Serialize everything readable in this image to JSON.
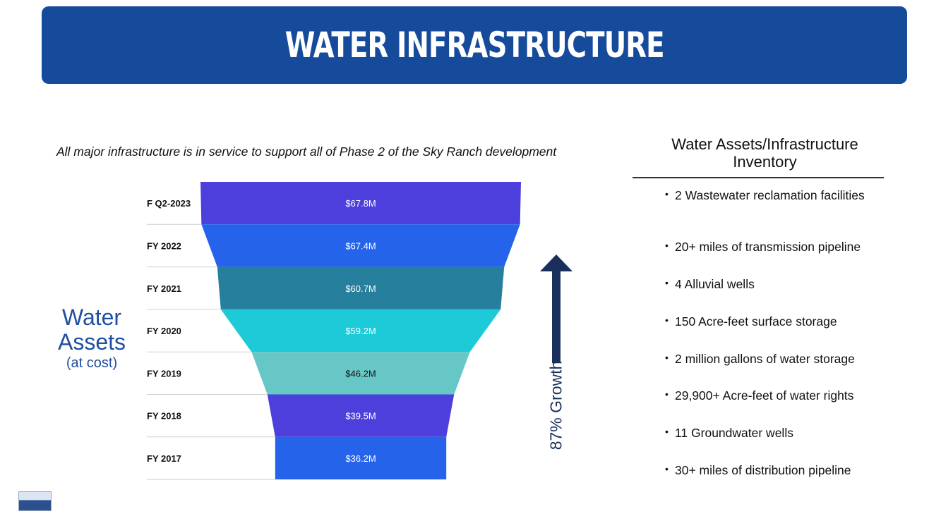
{
  "header": {
    "title": "WATER INFRASTRUCTURE"
  },
  "subtitle": "All major infrastructure is in service to support all of Phase 2 of the Sky Ranch development",
  "side_label": {
    "line1": "Water",
    "line2": "Assets",
    "line3": "(at cost)"
  },
  "growth_label": "87% Growth",
  "colors": {
    "banner": "#164b9c",
    "arrow": "#1a2f5c",
    "segments": [
      "#4d3fdb",
      "#2563eb",
      "#267f9c",
      "#1ccad8",
      "#66c7c6",
      "#4d3fdb",
      "#2563eb"
    ]
  },
  "chart_data": {
    "type": "funnel",
    "categories": [
      "F Q2-2023",
      "FY 2022",
      "FY 2021",
      "FY 2020",
      "FY 2019",
      "FY 2018",
      "FY 2017"
    ],
    "values": [
      67.8,
      67.4,
      60.7,
      59.2,
      46.2,
      39.5,
      36.2
    ],
    "value_labels": [
      "$67.8M",
      "$67.4M",
      "$60.7M",
      "$59.2M",
      "$46.2M",
      "$39.5M",
      "$36.2M"
    ]
  },
  "inventory": {
    "title_line1": "Water Assets/Infrastructure",
    "title_line2": "Inventory",
    "items": [
      "2 Wastewater reclamation facilities",
      "20+ miles of transmission pipeline",
      "4 Alluvial wells",
      "150 Acre-feet surface storage",
      "2 million gallons of water storage",
      "29,900+ Acre-feet of water rights",
      "11 Groundwater wells",
      "30+ miles of distribution pipeline"
    ]
  },
  "logo": {
    "icon": "company-logo-icon"
  }
}
